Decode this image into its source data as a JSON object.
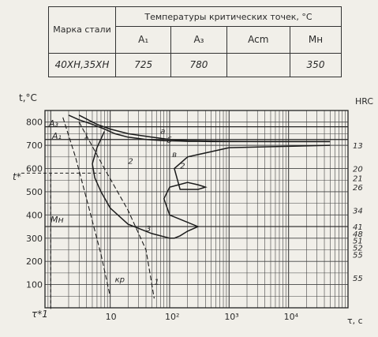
{
  "table": {
    "header_brand": "Марка стали",
    "header_temps": "Температуры критических точек, °С",
    "col_a1": "A₁",
    "col_a3": "A₃",
    "col_acm": "Acm",
    "col_mn": "Mн",
    "row_steel": "40ХН,35ХН",
    "row_a1": "725",
    "row_a3": "780",
    "row_acm": "",
    "row_mn": "350"
  },
  "chart_data": {
    "type": "line",
    "ylabel": "t,°C",
    "xlabel": "τ, с",
    "right_axis_label": "HRC",
    "x_scale": "log",
    "xlim": [
      0.8,
      100000
    ],
    "ylim": [
      0,
      850
    ],
    "y_ticks": [
      "800",
      "700",
      "600",
      "500",
      "400",
      "300",
      "200",
      "100"
    ],
    "x_ticks": [
      "10",
      "10²",
      "10³",
      "10⁴"
    ],
    "t_star_label": "t*",
    "tau_star_label": "τ*1",
    "a3_label": "A₃",
    "a1_label": "A₁",
    "mn_label": "Mн",
    "a3": 780,
    "a1": 725,
    "mn": 350,
    "t_star": 580,
    "hrc_labels": [
      "13",
      "20",
      "21",
      "26",
      "34",
      "41",
      "48",
      "51",
      "52",
      "55",
      "55"
    ],
    "cooling_curve_labels": [
      "1",
      "2",
      "3",
      "а",
      "б",
      "в",
      "2",
      "кр",
      "1"
    ],
    "series": [
      {
        "name": "",
        "x": [
          2,
          3,
          5,
          8,
          12,
          20,
          40,
          80,
          150,
          200,
          300,
          500,
          1000,
          2000,
          5000,
          10000,
          50000
        ],
        "y": [
          830,
          810,
          790,
          770,
          750,
          735,
          725,
          720,
          718,
          717,
          717,
          716,
          716,
          716,
          716,
          716,
          716
        ]
      },
      {
        "name": "",
        "x": [
          3,
          6,
          10,
          20,
          50,
          100,
          200,
          500,
          1000,
          5000,
          10000,
          50000
        ],
        "y": [
          830,
          790,
          770,
          750,
          735,
          725,
          720,
          718,
          717,
          716,
          716,
          716
        ]
      },
      {
        "name": "",
        "x": [
          8,
          6,
          5,
          5.5,
          7,
          10,
          20,
          50,
          100,
          120,
          150,
          200,
          300,
          100,
          80,
          100,
          200,
          300,
          400,
          300,
          150,
          120,
          200,
          1000,
          50000
        ],
        "y": [
          760,
          690,
          620,
          560,
          500,
          430,
          360,
          320,
          300,
          300,
          310,
          330,
          350,
          400,
          470,
          520,
          540,
          530,
          520,
          510,
          510,
          600,
          650,
          690,
          700
        ]
      }
    ]
  }
}
